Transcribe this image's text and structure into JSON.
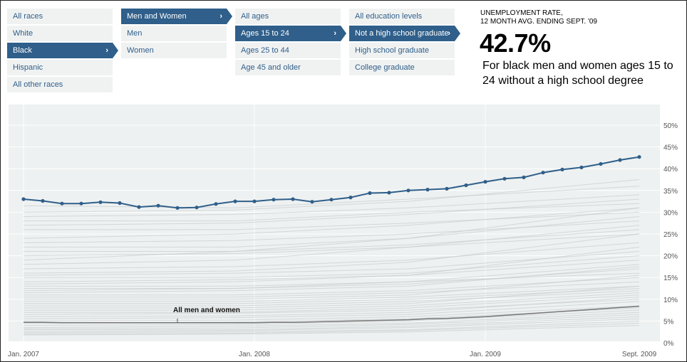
{
  "filters": {
    "race": {
      "items": [
        "All races",
        "White",
        "Black",
        "Hispanic",
        "All other races"
      ],
      "selected": 2
    },
    "sex": {
      "items": [
        "Men and Women",
        "Men",
        "Women"
      ],
      "selected": 0
    },
    "age": {
      "items": [
        "All ages",
        "Ages 15 to 24",
        "Ages 25 to 44",
        "Age 45 and older"
      ],
      "selected": 1
    },
    "education": {
      "items": [
        "All education levels",
        "Not a high school graduate",
        "High school graduate",
        "College graduate"
      ],
      "selected": 1
    }
  },
  "summary": {
    "label_line1": "UNEMPLOYMENT RATE,",
    "label_line2": "12 MONTH AVG. ENDING SEPT. '09",
    "value": "42.7%",
    "description": "For black men and women ages 15 to 24 without a high school degree"
  },
  "colors": {
    "accent": "#2f5f8a",
    "menu_bg": "#f0f2f2",
    "chart_bg": "#eef1f1",
    "background_lines": "#c8cccc",
    "baseline_line": "#777777"
  },
  "chart_data": {
    "type": "line",
    "x_tick_labels": [
      "Jan. 2007",
      "Jan. 2008",
      "Jan. 2009",
      "Sept. 2009"
    ],
    "y_tick_labels": [
      "0%",
      "5%",
      "10%",
      "15%",
      "20%",
      "25%",
      "30%",
      "35%",
      "40%",
      "45%",
      "50%"
    ],
    "ylim": [
      0,
      50
    ],
    "xlim": [
      "2007-01",
      "2009-09"
    ],
    "grid": true,
    "x": [
      "2007-01",
      "2007-02",
      "2007-03",
      "2007-04",
      "2007-05",
      "2007-06",
      "2007-07",
      "2007-08",
      "2007-09",
      "2007-10",
      "2007-11",
      "2007-12",
      "2008-01",
      "2008-02",
      "2008-03",
      "2008-04",
      "2008-05",
      "2008-06",
      "2008-07",
      "2008-08",
      "2008-09",
      "2008-10",
      "2008-11",
      "2008-12",
      "2009-01",
      "2009-02",
      "2009-03",
      "2009-04",
      "2009-05",
      "2009-06",
      "2009-07",
      "2009-08",
      "2009-09"
    ],
    "highlighted_series": {
      "values": [
        33.0,
        32.6,
        32.0,
        32.0,
        32.3,
        32.1,
        31.2,
        31.5,
        31.0,
        31.1,
        31.9,
        32.5,
        32.5,
        32.9,
        33.0,
        32.4,
        32.9,
        33.4,
        34.4,
        34.5,
        35.0,
        35.2,
        35.4,
        36.2,
        37.0,
        37.7,
        38.0,
        39.1,
        39.8,
        40.3,
        41.1,
        42.0,
        42.7
      ]
    },
    "baseline_series": {
      "name": "All men and women",
      "values": [
        4.7,
        4.7,
        4.6,
        4.6,
        4.6,
        4.6,
        4.6,
        4.6,
        4.6,
        4.6,
        4.6,
        4.6,
        4.6,
        4.7,
        4.7,
        4.8,
        4.9,
        5.0,
        5.1,
        5.2,
        5.3,
        5.5,
        5.6,
        5.8,
        6.0,
        6.3,
        6.6,
        6.9,
        7.2,
        7.5,
        7.8,
        8.1,
        8.4
      ],
      "label_at": "2007-09"
    },
    "background_series": [
      [
        19.0,
        21.0,
        24.0,
        31.0
      ],
      [
        18.0,
        19.0,
        22.0,
        27.0
      ],
      [
        17.0,
        17.5,
        19.0,
        23.0
      ],
      [
        16.0,
        16.5,
        18.5,
        25.0
      ],
      [
        15.5,
        16.0,
        17.0,
        21.0
      ],
      [
        15.0,
        15.0,
        16.0,
        20.0
      ],
      [
        14.0,
        14.5,
        15.5,
        19.0
      ],
      [
        13.5,
        14.0,
        15.5,
        22.0
      ],
      [
        13.0,
        13.0,
        14.0,
        18.0
      ],
      [
        12.5,
        12.5,
        13.5,
        17.0
      ],
      [
        12.0,
        12.5,
        14.0,
        16.0
      ],
      [
        11.5,
        12.0,
        13.0,
        17.5
      ],
      [
        11.0,
        11.0,
        12.0,
        15.0
      ],
      [
        10.5,
        10.5,
        11.5,
        14.0
      ],
      [
        10.0,
        10.0,
        11.0,
        15.5
      ],
      [
        9.5,
        9.5,
        10.5,
        13.0
      ],
      [
        9.0,
        9.0,
        10.0,
        12.5
      ],
      [
        8.5,
        8.5,
        9.5,
        12.0
      ],
      [
        8.0,
        8.0,
        9.0,
        13.0
      ],
      [
        7.5,
        7.5,
        8.5,
        11.5
      ],
      [
        7.0,
        7.0,
        8.0,
        11.0
      ],
      [
        6.5,
        6.8,
        7.5,
        10.0
      ],
      [
        6.0,
        6.2,
        7.0,
        10.5
      ],
      [
        5.5,
        5.8,
        6.5,
        9.5
      ],
      [
        5.0,
        5.2,
        6.0,
        8.5
      ],
      [
        4.5,
        4.8,
        5.5,
        8.0
      ],
      [
        4.0,
        4.2,
        5.0,
        7.5
      ],
      [
        3.5,
        3.8,
        4.5,
        7.0
      ],
      [
        3.2,
        3.4,
        4.2,
        6.5
      ],
      [
        3.0,
        3.0,
        3.8,
        6.0
      ],
      [
        2.6,
        2.8,
        3.5,
        5.5
      ],
      [
        2.3,
        2.5,
        3.0,
        5.0
      ],
      [
        2.0,
        2.2,
        2.8,
        4.5
      ],
      [
        1.8,
        2.0,
        2.5,
        4.0
      ],
      [
        31.5,
        31.0,
        33.0,
        36.0
      ],
      [
        30.0,
        30.5,
        32.5,
        37.5
      ],
      [
        29.0,
        29.5,
        31.0,
        34.0
      ],
      [
        28.0,
        28.0,
        30.0,
        32.0
      ],
      [
        27.0,
        27.5,
        29.5,
        33.0
      ],
      [
        26.0,
        26.0,
        27.5,
        30.0
      ],
      [
        24.0,
        25.0,
        27.0,
        31.0
      ],
      [
        23.0,
        23.5,
        25.0,
        28.0
      ],
      [
        22.0,
        22.0,
        24.0,
        29.0
      ],
      [
        21.0,
        21.0,
        22.5,
        26.0
      ],
      [
        20.0,
        20.5,
        22.0,
        25.0
      ]
    ]
  }
}
